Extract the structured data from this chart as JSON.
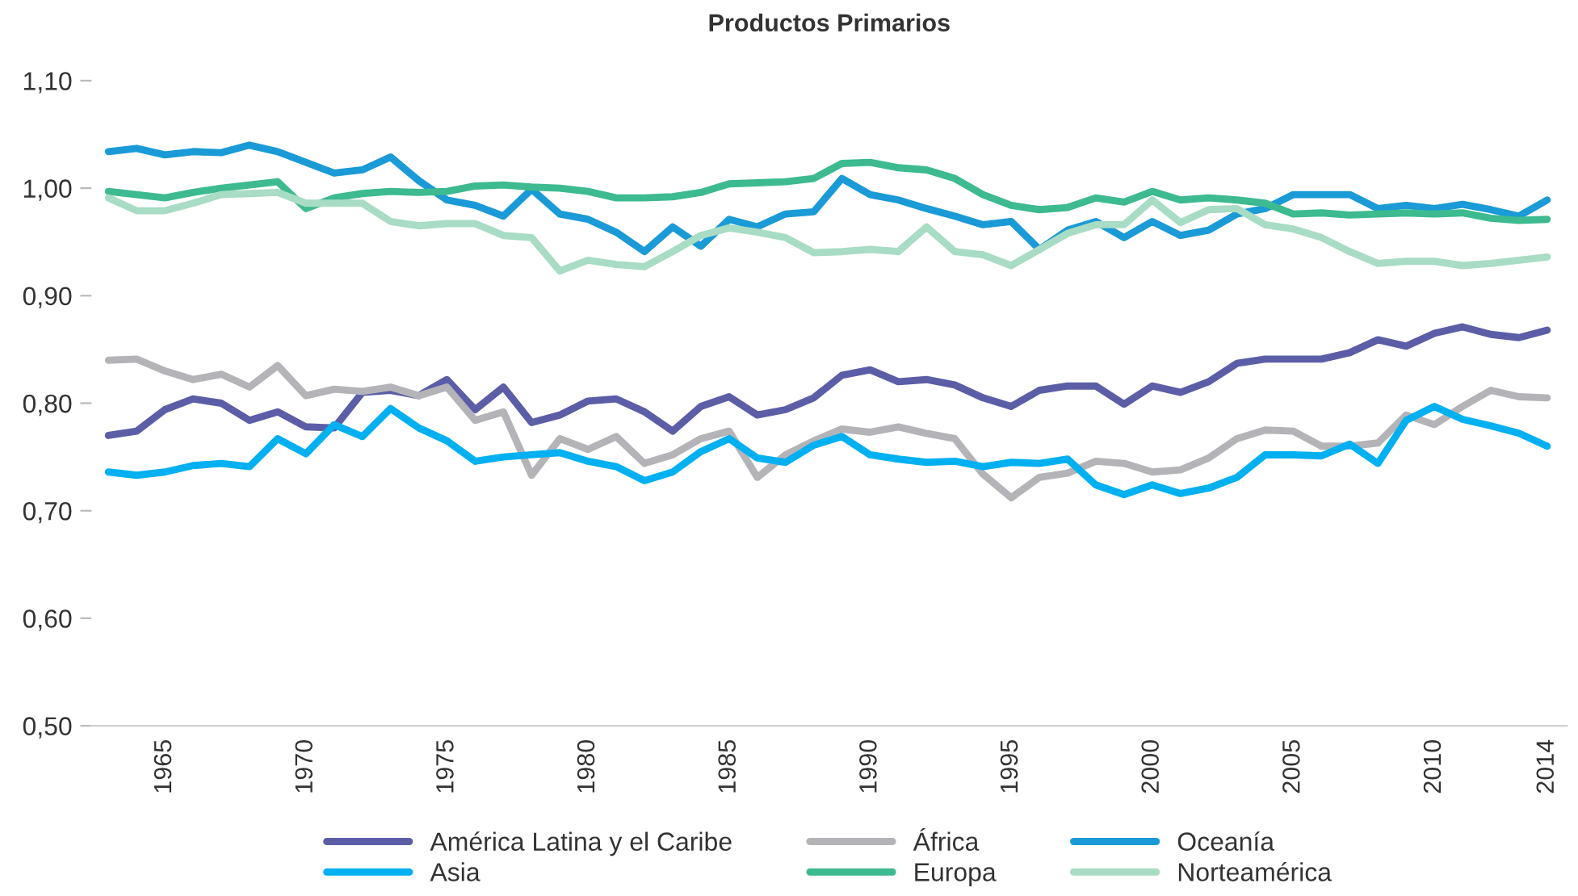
{
  "chart_data": {
    "type": "line",
    "title": "Productos Primarios",
    "x": [
      1963,
      1964,
      1965,
      1966,
      1967,
      1968,
      1969,
      1970,
      1971,
      1972,
      1973,
      1974,
      1975,
      1976,
      1977,
      1978,
      1979,
      1980,
      1981,
      1982,
      1983,
      1984,
      1985,
      1986,
      1987,
      1988,
      1989,
      1990,
      1991,
      1992,
      1993,
      1994,
      1995,
      1996,
      1997,
      1998,
      1999,
      2000,
      2001,
      2002,
      2003,
      2004,
      2005,
      2006,
      2007,
      2008,
      2009,
      2010,
      2011,
      2012,
      2013,
      2014
    ],
    "series": [
      {
        "name": "América Latina y el Caribe",
        "color": "#5b5ea6",
        "values": [
          0.77,
          0.774,
          0.794,
          0.804,
          0.8,
          0.784,
          0.792,
          0.778,
          0.777,
          0.81,
          0.812,
          0.807,
          0.822,
          0.794,
          0.815,
          0.782,
          0.789,
          0.802,
          0.804,
          0.792,
          0.774,
          0.797,
          0.806,
          0.789,
          0.794,
          0.805,
          0.826,
          0.831,
          0.82,
          0.822,
          0.817,
          0.805,
          0.797,
          0.812,
          0.816,
          0.816,
          0.799,
          0.816,
          0.81,
          0.82,
          0.837,
          0.841,
          0.841,
          0.841,
          0.847,
          0.859,
          0.853,
          0.865,
          0.871,
          0.864,
          0.861,
          0.868
        ]
      },
      {
        "name": "África",
        "color": "#b4b4b8",
        "values": [
          0.84,
          0.841,
          0.83,
          0.822,
          0.827,
          0.815,
          0.835,
          0.807,
          0.813,
          0.811,
          0.815,
          0.807,
          0.815,
          0.784,
          0.792,
          0.733,
          0.767,
          0.757,
          0.769,
          0.744,
          0.752,
          0.767,
          0.774,
          0.731,
          0.752,
          0.765,
          0.776,
          0.773,
          0.778,
          0.772,
          0.767,
          0.734,
          0.712,
          0.731,
          0.735,
          0.746,
          0.744,
          0.736,
          0.738,
          0.749,
          0.767,
          0.775,
          0.774,
          0.76,
          0.76,
          0.763,
          0.789,
          0.78,
          0.797,
          0.812,
          0.806,
          0.805
        ]
      },
      {
        "name": "Oceanía",
        "color": "#1a9ad6",
        "values": [
          1.034,
          1.037,
          1.031,
          1.034,
          1.033,
          1.04,
          1.034,
          1.024,
          1.014,
          1.017,
          1.029,
          1.007,
          0.989,
          0.984,
          0.974,
          0.999,
          0.976,
          0.971,
          0.959,
          0.941,
          0.964,
          0.946,
          0.971,
          0.964,
          0.976,
          0.978,
          1.009,
          0.994,
          0.989,
          0.981,
          0.974,
          0.966,
          0.969,
          0.943,
          0.961,
          0.969,
          0.954,
          0.969,
          0.956,
          0.961,
          0.976,
          0.981,
          0.994,
          0.994,
          0.994,
          0.981,
          0.984,
          0.981,
          0.985,
          0.98,
          0.974,
          0.989
        ]
      },
      {
        "name": "Asia",
        "color": "#00b0f0",
        "values": [
          0.736,
          0.733,
          0.736,
          0.742,
          0.744,
          0.741,
          0.767,
          0.753,
          0.78,
          0.769,
          0.795,
          0.777,
          0.765,
          0.746,
          0.75,
          0.752,
          0.754,
          0.746,
          0.741,
          0.728,
          0.736,
          0.755,
          0.767,
          0.749,
          0.745,
          0.761,
          0.769,
          0.752,
          0.748,
          0.745,
          0.746,
          0.741,
          0.745,
          0.744,
          0.748,
          0.724,
          0.715,
          0.724,
          0.716,
          0.721,
          0.731,
          0.752,
          0.752,
          0.751,
          0.762,
          0.744,
          0.784,
          0.797,
          0.785,
          0.779,
          0.772,
          0.76
        ]
      },
      {
        "name": "Europa",
        "color": "#3dba8f",
        "values": [
          0.997,
          0.994,
          0.991,
          0.996,
          1.0,
          1.003,
          1.006,
          0.981,
          0.991,
          0.995,
          0.997,
          0.996,
          0.997,
          1.002,
          1.003,
          1.001,
          1.0,
          0.997,
          0.991,
          0.991,
          0.992,
          0.996,
          1.004,
          1.005,
          1.006,
          1.009,
          1.023,
          1.024,
          1.019,
          1.017,
          1.009,
          0.994,
          0.984,
          0.98,
          0.982,
          0.991,
          0.987,
          0.997,
          0.989,
          0.991,
          0.989,
          0.986,
          0.976,
          0.977,
          0.975,
          0.976,
          0.977,
          0.976,
          0.977,
          0.972,
          0.97,
          0.971
        ]
      },
      {
        "name": "Norteamérica",
        "color": "#a8dcc4",
        "values": [
          0.991,
          0.979,
          0.979,
          0.986,
          0.994,
          0.995,
          0.996,
          0.986,
          0.986,
          0.986,
          0.969,
          0.965,
          0.967,
          0.967,
          0.956,
          0.954,
          0.923,
          0.933,
          0.929,
          0.927,
          0.941,
          0.956,
          0.963,
          0.959,
          0.954,
          0.94,
          0.941,
          0.943,
          0.941,
          0.964,
          0.941,
          0.938,
          0.928,
          0.943,
          0.958,
          0.966,
          0.966,
          0.989,
          0.968,
          0.98,
          0.981,
          0.966,
          0.962,
          0.954,
          0.941,
          0.93,
          0.932,
          0.932,
          0.928,
          0.93,
          0.933,
          0.936
        ]
      }
    ],
    "xlim": [
      1962.4,
      2014.7
    ],
    "xticks": [
      1965,
      1970,
      1975,
      1980,
      1985,
      1990,
      1995,
      2000,
      2005,
      2010,
      2014
    ],
    "ylim": [
      0.5,
      1.1
    ],
    "yticks": [
      {
        "value": 0.5,
        "label": "0,50"
      },
      {
        "value": 0.6,
        "label": "0,60"
      },
      {
        "value": 0.7,
        "label": "0,70"
      },
      {
        "value": 0.8,
        "label": "0,80"
      },
      {
        "value": 0.9,
        "label": "0,90"
      },
      {
        "value": 1.0,
        "label": "1,00"
      },
      {
        "value": 1.1,
        "label": "1,10"
      }
    ],
    "grid": false,
    "legend": "bottom",
    "marker": "none",
    "line_style": "solid"
  }
}
